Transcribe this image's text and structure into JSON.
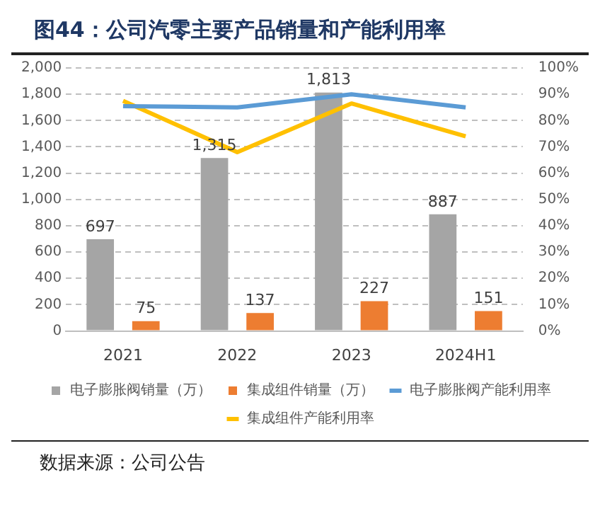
{
  "chart_data": {
    "type": "bar",
    "title": "图44：公司汽零主要产品销量和产能利用率",
    "categories": [
      "2021",
      "2022",
      "2023",
      "2024H1"
    ],
    "series": [
      {
        "name": "电子膨胀阀销量（万）",
        "color": "#a5a5a5",
        "values": [
          697,
          1315,
          1813,
          887
        ],
        "value_labels": [
          "697",
          "1,315",
          "1,813",
          "887"
        ]
      },
      {
        "name": "集成组件销量（万）",
        "color": "#ed7d31",
        "values": [
          75,
          137,
          227,
          151
        ],
        "value_labels": [
          "75",
          "137",
          "227",
          "151"
        ]
      },
      {
        "name": "电子膨胀阀产能利用率",
        "type": "line",
        "axis": "y2",
        "color": "#5b9bd5",
        "values": [
          85.5,
          85,
          90,
          85
        ]
      },
      {
        "name": "集成组件产能利用率",
        "type": "line",
        "axis": "y2",
        "color": "#ffc000",
        "values": [
          87.5,
          68,
          86.5,
          74
        ]
      }
    ],
    "ylim": [
      0,
      2000
    ],
    "yticks": [
      {
        "value": 0,
        "label": "0"
      },
      {
        "value": 200,
        "label": "200"
      },
      {
        "value": 400,
        "label": "400"
      },
      {
        "value": 600,
        "label": "600"
      },
      {
        "value": 800,
        "label": "800"
      },
      {
        "value": 1000,
        "label": "1,000"
      },
      {
        "value": 1200,
        "label": "1,200"
      },
      {
        "value": 1400,
        "label": "1,400"
      },
      {
        "value": 1600,
        "label": "1,600"
      },
      {
        "value": 1800,
        "label": "1,800"
      },
      {
        "value": 2000,
        "label": "2,000"
      }
    ],
    "y2lim": [
      0,
      100
    ],
    "y2ticks": [
      {
        "value": 0,
        "label": "0%"
      },
      {
        "value": 10,
        "label": "10%"
      },
      {
        "value": 20,
        "label": "20%"
      },
      {
        "value": 30,
        "label": "30%"
      },
      {
        "value": 40,
        "label": "40%"
      },
      {
        "value": 50,
        "label": "50%"
      },
      {
        "value": 60,
        "label": "60%"
      },
      {
        "value": 70,
        "label": "70%"
      },
      {
        "value": 80,
        "label": "80%"
      },
      {
        "value": 90,
        "label": "90%"
      },
      {
        "value": 100,
        "label": "100%"
      }
    ],
    "grid": "y",
    "legend": "bottom",
    "marker": "none",
    "line_style": "solid",
    "annotations": [
      "数据来源：公司公告"
    ]
  }
}
